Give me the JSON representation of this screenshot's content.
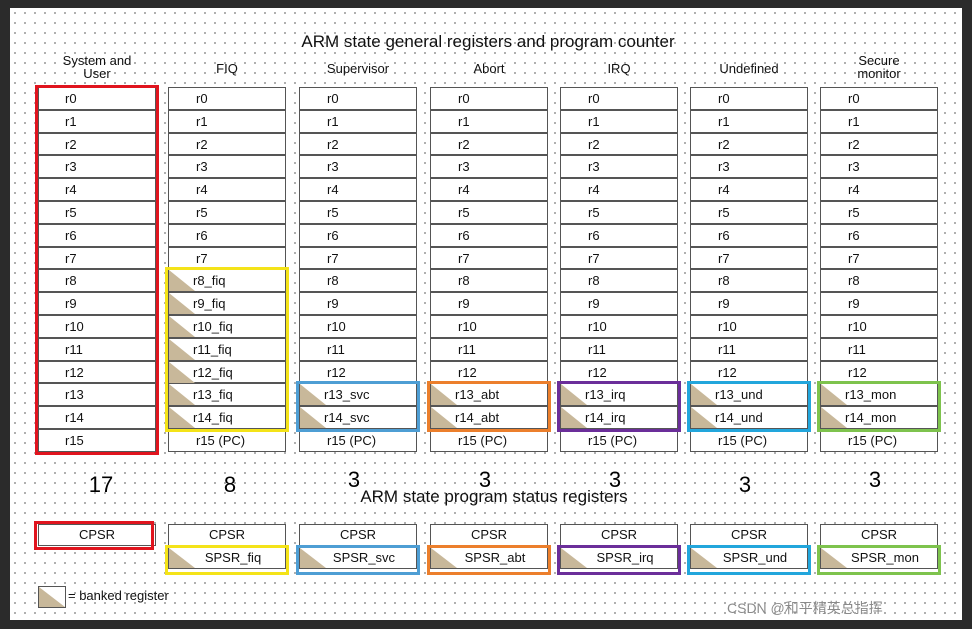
{
  "title": "ARM state general registers and program counter",
  "psr_title": "ARM state program status registers",
  "legend_text": "= banked register",
  "watermark": "CSDN @和平精英总指挥",
  "modes": [
    {
      "name": "System and\nUser",
      "color": "#e0141e",
      "count": "17",
      "registers": [
        "r0",
        "r1",
        "r2",
        "r3",
        "r4",
        "r5",
        "r6",
        "r7",
        "r8",
        "r9",
        "r10",
        "r11",
        "r12",
        "r13",
        "r14",
        "r15"
      ],
      "banked_from": 99,
      "spsr": ""
    },
    {
      "name": "FIQ",
      "color": "#f4e318",
      "count": "8",
      "registers": [
        "r0",
        "r1",
        "r2",
        "r3",
        "r4",
        "r5",
        "r6",
        "r7",
        "r8_fiq",
        "r9_fiq",
        "r10_fiq",
        "r11_fiq",
        "r12_fiq",
        "r13_fiq",
        "r14_fiq",
        "r15 (PC)"
      ],
      "banked_from": 8,
      "spsr": "SPSR_fiq"
    },
    {
      "name": "Supervisor",
      "color": "#4e9ed4",
      "count": "3",
      "registers": [
        "r0",
        "r1",
        "r2",
        "r3",
        "r4",
        "r5",
        "r6",
        "r7",
        "r8",
        "r9",
        "r10",
        "r11",
        "r12",
        "r13_svc",
        "r14_svc",
        "r15 (PC)"
      ],
      "banked_from": 13,
      "spsr": "SPSR_svc"
    },
    {
      "name": "Abort",
      "color": "#ec7f2c",
      "count": "3",
      "registers": [
        "r0",
        "r1",
        "r2",
        "r3",
        "r4",
        "r5",
        "r6",
        "r7",
        "r8",
        "r9",
        "r10",
        "r11",
        "r12",
        "r13_abt",
        "r14_abt",
        "r15 (PC)"
      ],
      "banked_from": 13,
      "spsr": "SPSR_abt"
    },
    {
      "name": "IRQ",
      "color": "#6b2e9a",
      "count": "3",
      "registers": [
        "r0",
        "r1",
        "r2",
        "r3",
        "r4",
        "r5",
        "r6",
        "r7",
        "r8",
        "r9",
        "r10",
        "r11",
        "r12",
        "r13_irq",
        "r14_irq",
        "r15 (PC)"
      ],
      "banked_from": 13,
      "spsr": "SPSR_irq"
    },
    {
      "name": "Undefined",
      "color": "#22a6dc",
      "count": "3",
      "registers": [
        "r0",
        "r1",
        "r2",
        "r3",
        "r4",
        "r5",
        "r6",
        "r7",
        "r8",
        "r9",
        "r10",
        "r11",
        "r12",
        "r13_und",
        "r14_und",
        "r15 (PC)"
      ],
      "banked_from": 13,
      "spsr": "SPSR_und"
    },
    {
      "name": "Secure\nmonitor",
      "color": "#7ec34d",
      "count": "3",
      "registers": [
        "r0",
        "r1",
        "r2",
        "r3",
        "r4",
        "r5",
        "r6",
        "r7",
        "r8",
        "r9",
        "r10",
        "r11",
        "r12",
        "r13_mon",
        "r14_mon",
        "r15 (PC)"
      ],
      "banked_from": 13,
      "spsr": "SPSR_mon"
    }
  ],
  "cpsr_label": "CPSR"
}
